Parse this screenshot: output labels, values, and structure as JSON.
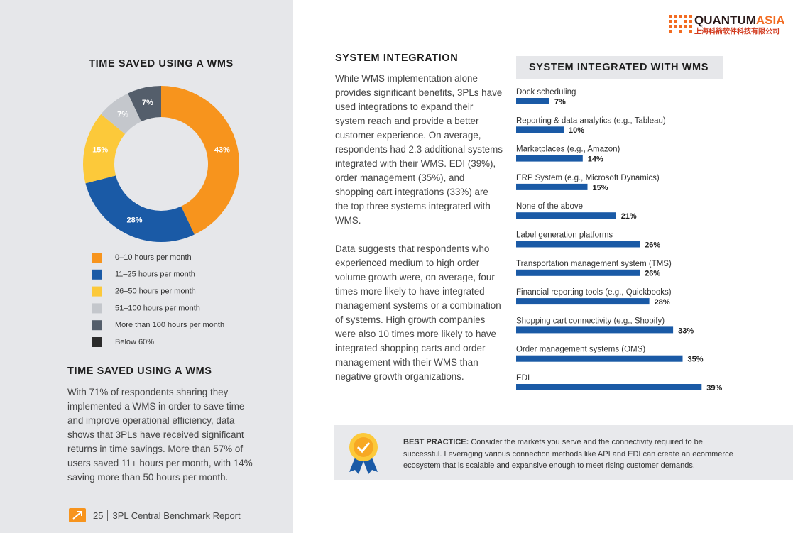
{
  "header": {
    "logo_a": "QUANTUM",
    "logo_b": "ASIA",
    "logo_sub": "上海科箭软件科技有限公司"
  },
  "chart_data": [
    {
      "type": "donut",
      "title": "TIME SAVED USING A WMS",
      "categories": [
        "0–10 hours per month",
        "11–25 hours per month",
        "26–50 hours per month",
        "51–100 hours per month",
        "More than 100 hours per month",
        "Below 60%"
      ],
      "values": [
        43,
        28,
        15,
        7,
        7,
        null
      ],
      "value_labels": [
        "43%",
        "28%",
        "15%",
        "7%",
        "7%",
        null
      ],
      "colors": [
        "#f7941d",
        "#1a5aa6",
        "#fcc93a",
        "#c4c7cc",
        "#545e6b",
        "#2b2b2b"
      ]
    },
    {
      "type": "hbar",
      "title": "SYSTEM INTEGRATED WITH WMS",
      "categories": [
        "Dock scheduling",
        "Reporting & data analytics (e.g., Tableau)",
        "Marketplaces (e.g., Amazon)",
        "ERP System (e.g., Microsoft Dynamics)",
        "None of the above",
        "Label generation platforms",
        "Transportation management system (TMS)",
        "Financial reporting tools (e.g., Quickbooks)",
        "Shopping cart connectivity (e.g., Shopify)",
        "Order management systems (OMS)",
        "EDI"
      ],
      "values": [
        7,
        10,
        14,
        15,
        21,
        26,
        26,
        28,
        33,
        35,
        39
      ],
      "value_labels": [
        "7%",
        "10%",
        "14%",
        "15%",
        "21%",
        "26%",
        "26%",
        "28%",
        "33%",
        "35%",
        "39%"
      ],
      "color": "#1a5aa6"
    }
  ],
  "left": {
    "heading": "TIME SAVED USING A WMS",
    "body": "With 71% of respondents sharing they implemented a WMS in order to save time and improve operational efficiency, data shows that 3PLs have received significant returns in time savings. More than 57% of users saved 11+ hours per month, with 14% saving more than 50 hours per month."
  },
  "middle": {
    "heading": "SYSTEM INTEGRATION",
    "paragraphs": [
      "While WMS implementation alone provides significant benefits, 3PLs have used integrations to expand their system reach and provide a better customer experience. On average, respondents had 2.3 additional systems integrated with their WMS. EDI (39%), order management (35%), and shopping cart integrations (33%) are the top three systems integrated with WMS.",
      "Data suggests that respondents who experienced medium to high order volume growth were, on average, four times more likely to have integrated management systems or a combination of systems. High growth companies were also 10 times more likely to have integrated shopping carts and order management with their WMS than negative growth organizations."
    ]
  },
  "best_practice": {
    "label": "BEST PRACTICE:",
    "text": "Consider the markets you serve and the connectivity required to be successful. Leveraging various connection methods like API and EDI can create an ecommerce ecosystem that is scalable and expansive enough to meet rising customer demands."
  },
  "footer": {
    "page": "25",
    "title": "3PL Central Benchmark Report"
  }
}
